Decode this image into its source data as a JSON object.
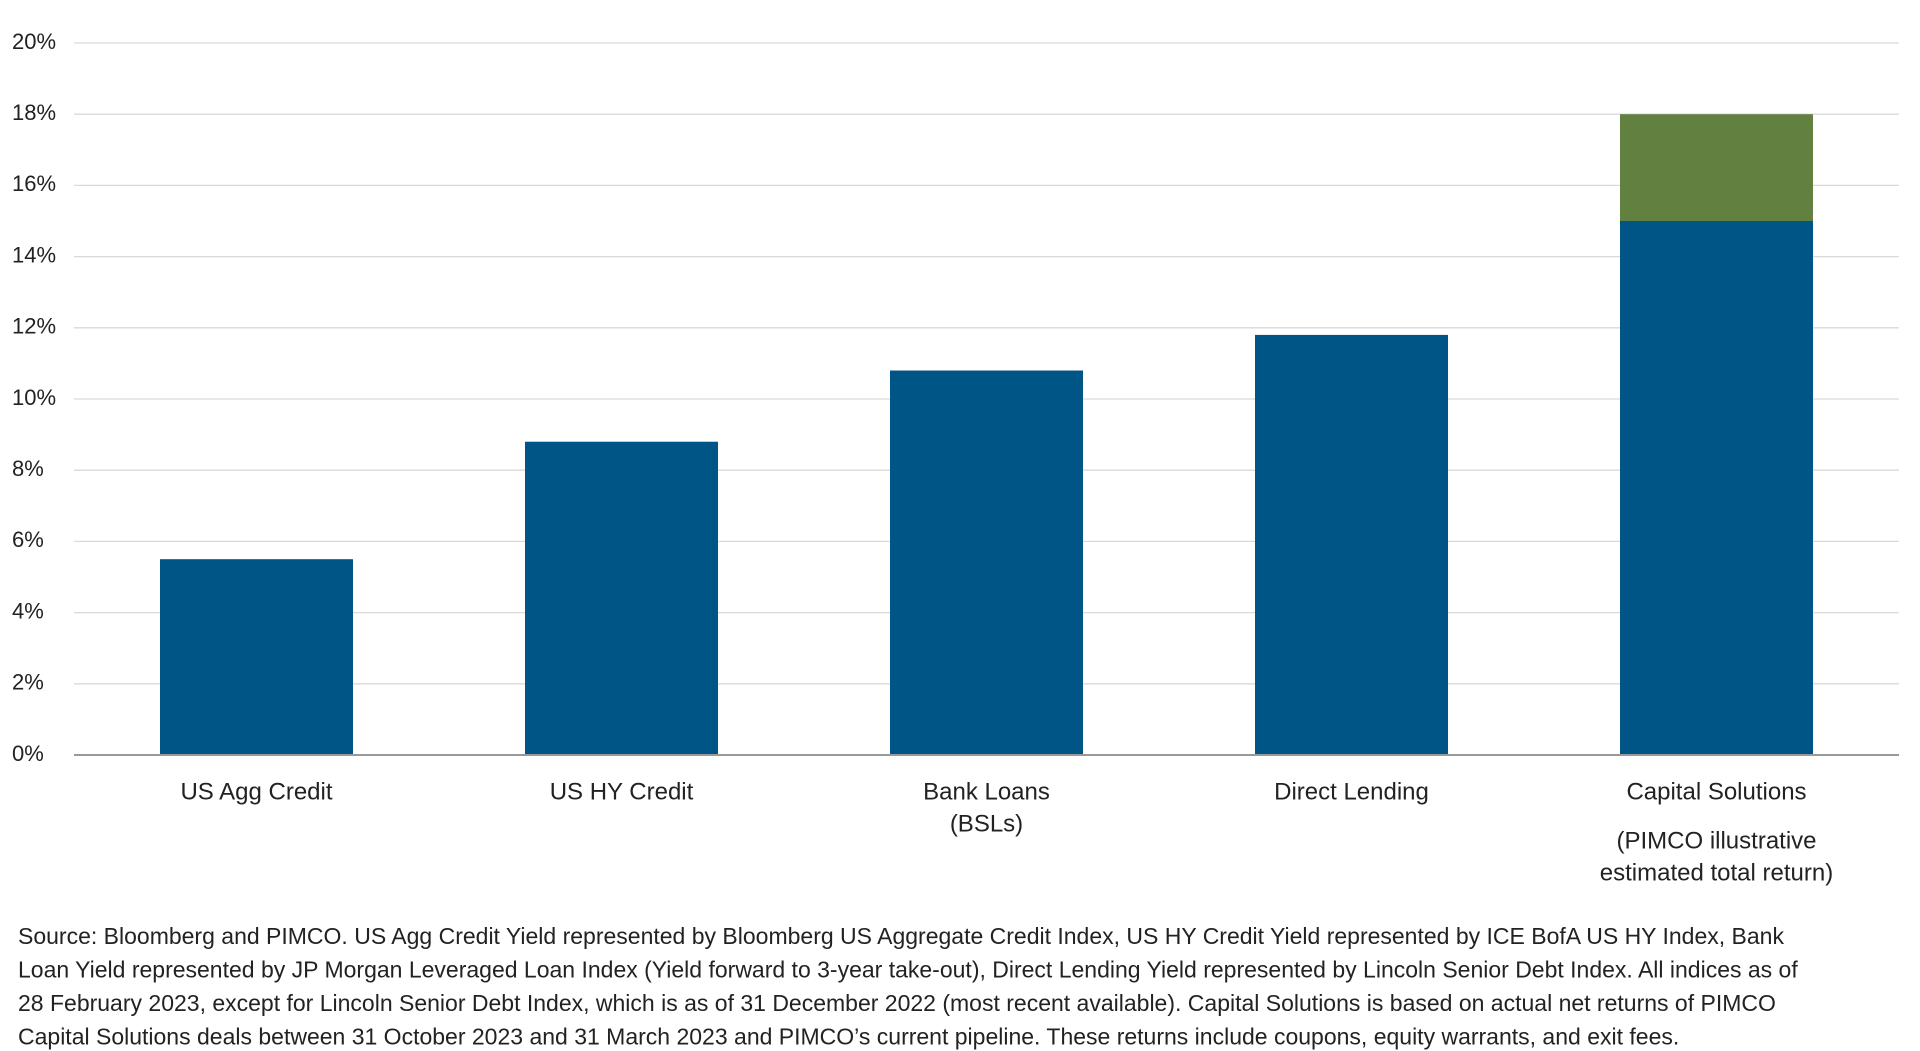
{
  "chart_data": {
    "type": "stacked_bar",
    "categories": [
      [
        "US Agg Credit"
      ],
      [
        "US HY Credit"
      ],
      [
        "Bank Loans",
        "(BSLs)"
      ],
      [
        "Direct Lending"
      ],
      [
        "Capital Solutions"
      ]
    ],
    "annotation": [
      "(PIMCO illustrative",
      "estimated total return)"
    ],
    "series": [
      {
        "color": "#005587",
        "values": [
          5.5,
          8.8,
          10.8,
          11.8,
          15.0
        ]
      },
      {
        "color": "#62803f",
        "values": [
          null,
          null,
          null,
          null,
          3.0
        ]
      }
    ],
    "ylim": [
      0,
      20
    ],
    "yticks": [
      {
        "value": 0,
        "label": "0%"
      },
      {
        "value": 2,
        "label": "2%"
      },
      {
        "value": 4,
        "label": "4%"
      },
      {
        "value": 6,
        "label": "6%"
      },
      {
        "value": 8,
        "label": "8%"
      },
      {
        "value": 10,
        "label": "10%"
      },
      {
        "value": 12,
        "label": "12%"
      },
      {
        "value": 14,
        "label": "14%"
      },
      {
        "value": 16,
        "label": "16%"
      },
      {
        "value": 18,
        "label": "18%"
      },
      {
        "value": 20,
        "label": "20%"
      }
    ],
    "grid": true,
    "footnote": [
      "Source: Bloomberg and PIMCO. US Agg Credit Yield represented by Bloomberg US Aggregate Credit Index, US HY Credit Yield represented by ICE BofA US HY Index, Bank",
      "Loan Yield represented by JP Morgan Leveraged Loan Index (Yield forward to 3-year take-out), Direct Lending Yield represented by Lincoln Senior Debt Index. All indices as of",
      "28 February 2023, except for Lincoln Senior Debt Index, which is as of 31 December 2022 (most recent available). Capital Solutions is based on actual net returns of PIMCO",
      "Capital Solutions deals between 31 October 2023 and 31 March 2023 and PIMCO’s current pipeline. These returns include coupons, equity warrants, and exit fees."
    ]
  }
}
